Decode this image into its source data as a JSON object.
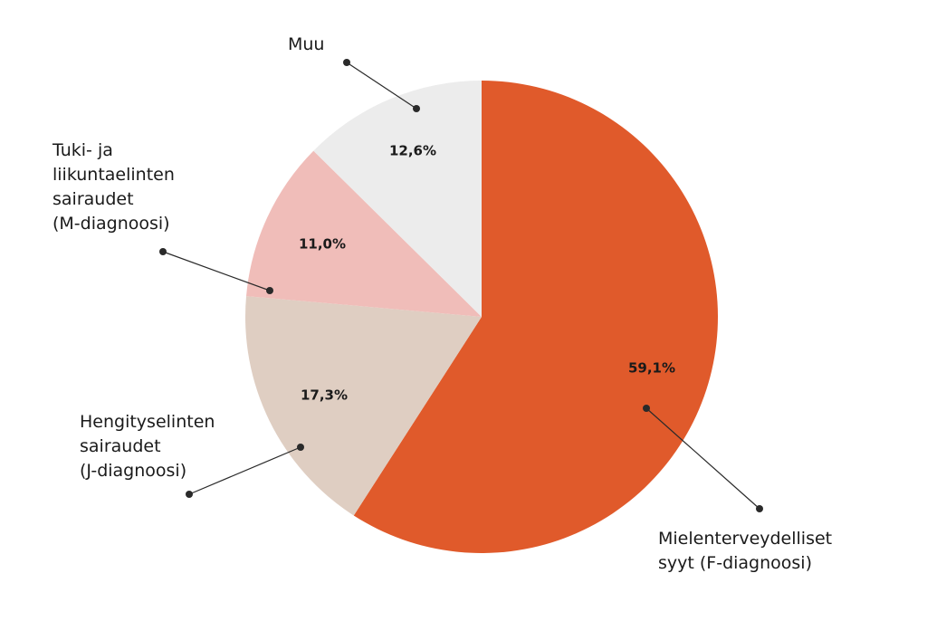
{
  "chart_data": {
    "type": "pie",
    "slices": [
      {
        "id": "f-diagnoosi",
        "label_lines": [
          "Mielenterveydelliset",
          "syyt (F-diagnoosi)"
        ],
        "value": 59.1,
        "value_label": "59,1%",
        "color": "#e05a2b"
      },
      {
        "id": "j-diagnoosi",
        "label_lines": [
          "Hengityselinten",
          "sairaudet",
          "(J-diagnoosi)"
        ],
        "value": 17.3,
        "value_label": "17,3%",
        "color": "#dfcec2"
      },
      {
        "id": "m-diagnoosi",
        "label_lines": [
          "Tuki- ja",
          "liikuntaelinten",
          "sairaudet",
          "(M-diagnoosi)"
        ],
        "value": 11.0,
        "value_label": "11,0%",
        "color": "#f0bdb9"
      },
      {
        "id": "muu",
        "label_lines": [
          "Muu"
        ],
        "value": 12.6,
        "value_label": "12,6%",
        "color": "#ececec"
      }
    ],
    "start": "top",
    "direction": "clockwise",
    "legend": "none",
    "title": ""
  }
}
